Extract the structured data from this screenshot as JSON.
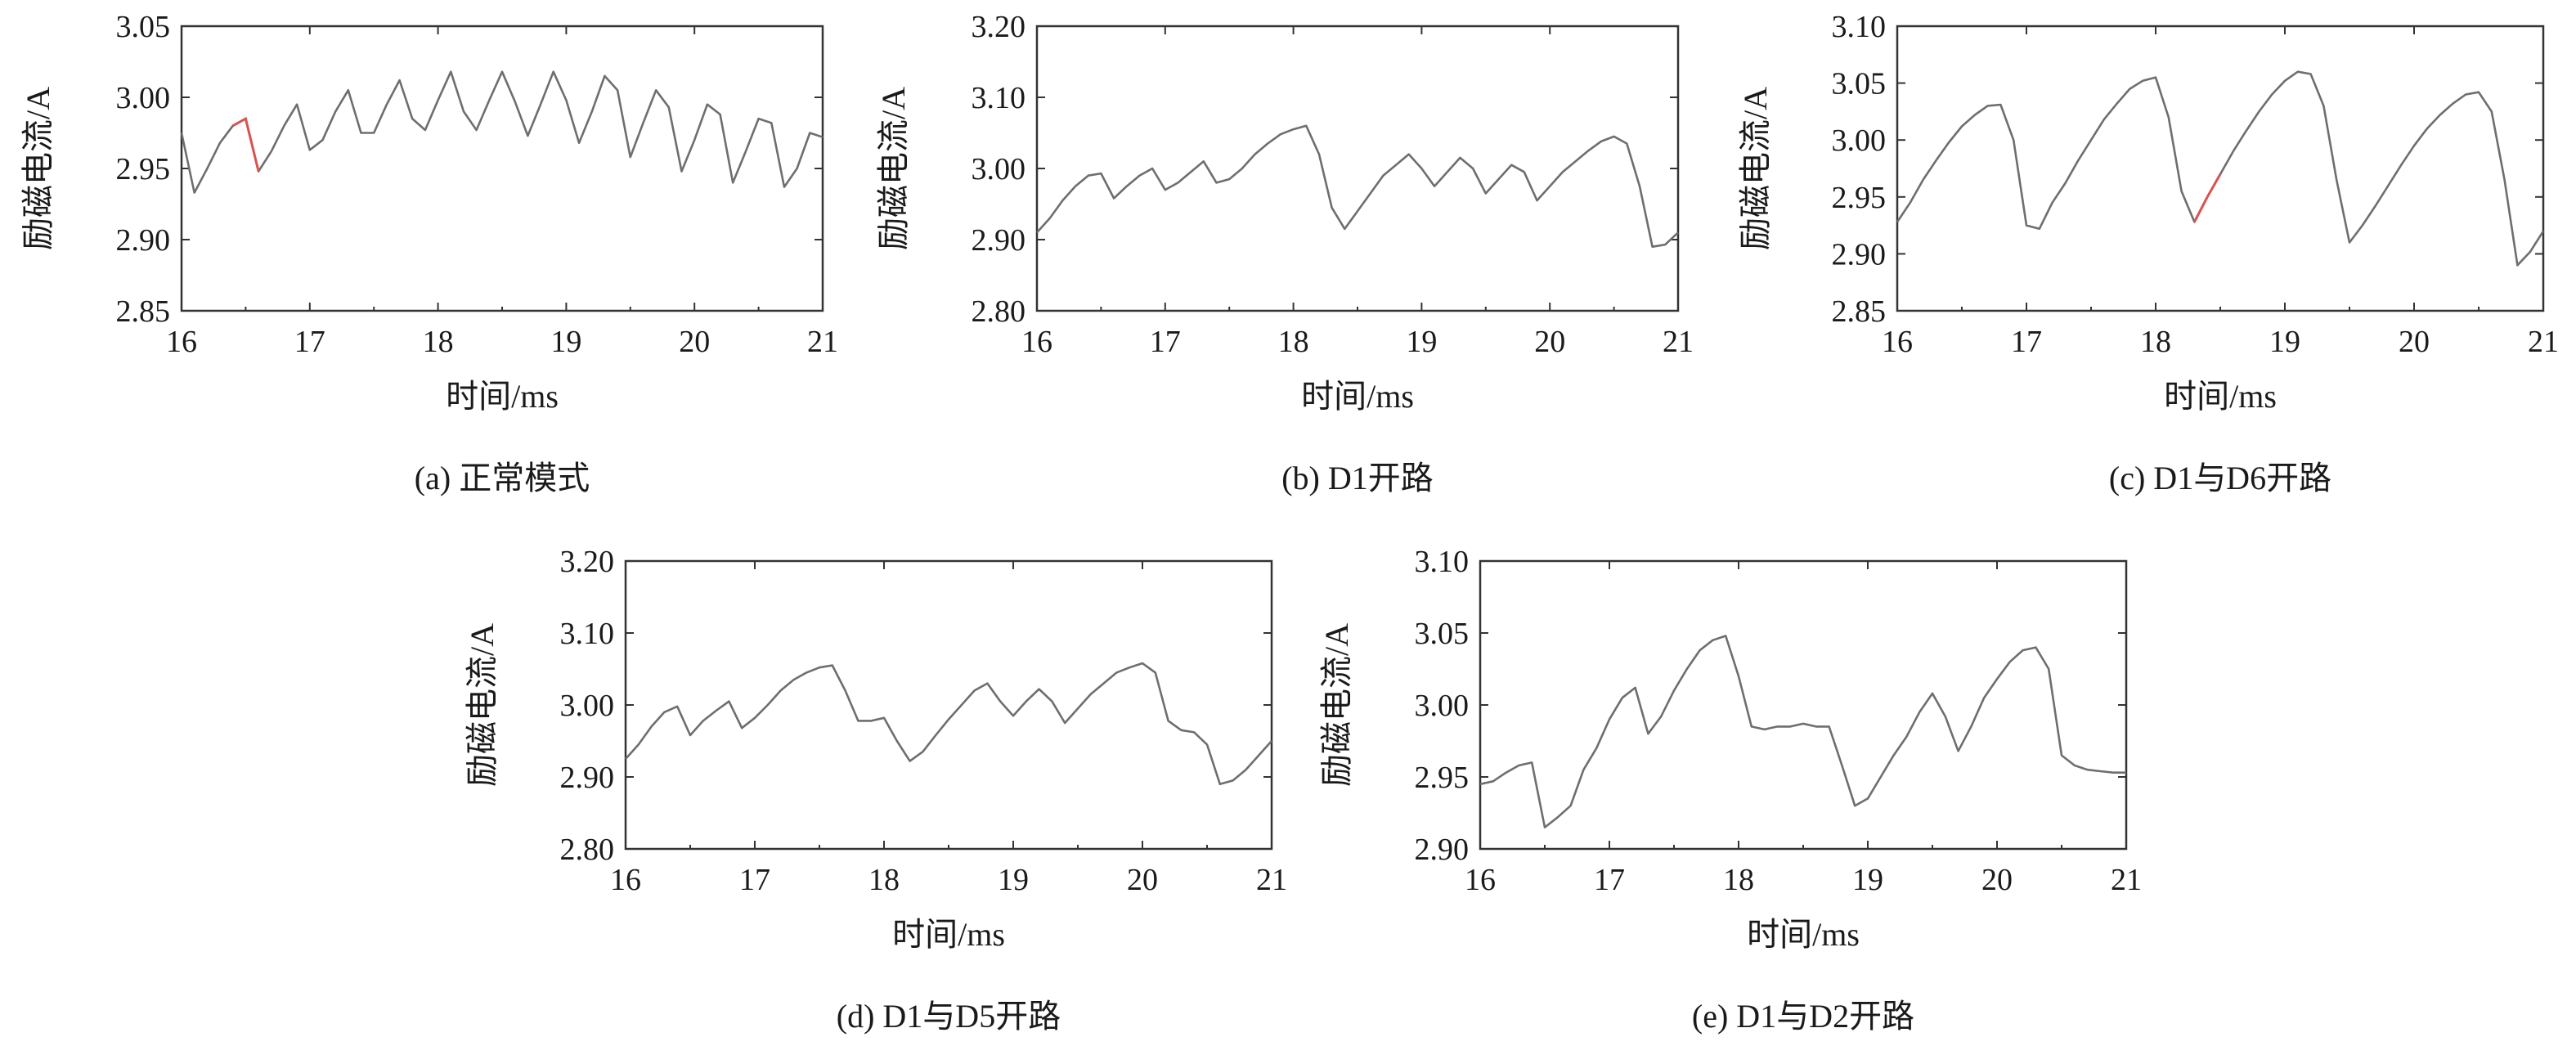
{
  "chart_data": [
    {
      "type": "line",
      "caption": "(a) 正常模式",
      "xlabel": "时间/ms",
      "ylabel": "励磁电流/A",
      "xlim": [
        16,
        21
      ],
      "ylim": [
        2.85,
        3.05
      ],
      "xticks": [
        16,
        17,
        18,
        19,
        20,
        21
      ],
      "yticks": [
        2.85,
        2.9,
        2.95,
        3.0,
        3.05
      ],
      "ytick_labels": [
        "2.85",
        "2.90",
        "2.95",
        "3.00",
        "3.05"
      ],
      "grid": false,
      "accent_color": "#d9534f",
      "accent_segment": [
        4,
        6
      ],
      "series": [
        {
          "x": [
            16.0,
            16.1,
            16.2,
            16.3,
            16.4,
            16.5,
            16.6,
            16.7,
            16.8,
            16.9,
            17.0,
            17.1,
            17.2,
            17.3,
            17.4,
            17.5,
            17.6,
            17.7,
            17.8,
            17.9,
            18.0,
            18.1,
            18.2,
            18.3,
            18.4,
            18.5,
            18.6,
            18.7,
            18.8,
            18.9,
            19.0,
            19.1,
            19.2,
            19.3,
            19.4,
            19.5,
            19.6,
            19.7,
            19.8,
            19.9,
            20.0,
            20.1,
            20.2,
            20.3,
            20.4,
            20.5,
            20.6,
            20.7,
            20.8,
            20.9,
            21.0
          ],
          "values": [
            2.975,
            2.933,
            2.95,
            2.968,
            2.98,
            2.985,
            2.948,
            2.962,
            2.98,
            2.995,
            2.963,
            2.97,
            2.99,
            3.005,
            2.975,
            2.975,
            2.995,
            3.012,
            2.985,
            2.977,
            2.998,
            3.018,
            2.99,
            2.977,
            2.998,
            3.018,
            2.997,
            2.973,
            2.995,
            3.018,
            2.998,
            2.968,
            2.99,
            3.015,
            3.005,
            2.958,
            2.982,
            3.005,
            2.993,
            2.948,
            2.97,
            2.995,
            2.988,
            2.94,
            2.962,
            2.985,
            2.982,
            2.937,
            2.95,
            2.975,
            2.972
          ]
        }
      ]
    },
    {
      "type": "line",
      "caption": "(b) D1开路",
      "xlabel": "时间/ms",
      "ylabel": "励磁电流/A",
      "xlim": [
        16,
        21
      ],
      "ylim": [
        2.8,
        3.2
      ],
      "xticks": [
        16,
        17,
        18,
        19,
        20,
        21
      ],
      "yticks": [
        2.8,
        2.9,
        3.0,
        3.1,
        3.2
      ],
      "ytick_labels": [
        "2.80",
        "2.90",
        "3.00",
        "3.10",
        "3.20"
      ],
      "grid": false,
      "series": [
        {
          "x": [
            16.0,
            16.1,
            16.2,
            16.3,
            16.4,
            16.5,
            16.6,
            16.7,
            16.8,
            16.9,
            17.0,
            17.1,
            17.2,
            17.3,
            17.4,
            17.5,
            17.6,
            17.7,
            17.8,
            17.9,
            18.0,
            18.1,
            18.2,
            18.3,
            18.4,
            18.5,
            18.6,
            18.7,
            18.8,
            18.9,
            19.0,
            19.1,
            19.2,
            19.3,
            19.4,
            19.5,
            19.6,
            19.7,
            19.8,
            19.9,
            20.0,
            20.1,
            20.2,
            20.3,
            20.4,
            20.5,
            20.6,
            20.7,
            20.8,
            20.9,
            21.0
          ],
          "values": [
            2.91,
            2.93,
            2.955,
            2.975,
            2.99,
            2.993,
            2.958,
            2.975,
            2.99,
            3.0,
            2.97,
            2.98,
            2.995,
            3.01,
            2.98,
            2.985,
            3.0,
            3.02,
            3.035,
            3.048,
            3.055,
            3.06,
            3.02,
            2.945,
            2.915,
            2.94,
            2.965,
            2.99,
            3.005,
            3.02,
            3.0,
            2.975,
            2.995,
            3.015,
            3.0,
            2.965,
            2.985,
            3.005,
            2.995,
            2.955,
            2.975,
            2.995,
            3.01,
            3.025,
            3.038,
            3.045,
            3.035,
            2.975,
            2.89,
            2.893,
            2.91
          ]
        }
      ]
    },
    {
      "type": "line",
      "caption": "(c) D1与D6开路",
      "xlabel": "时间/ms",
      "ylabel": "励磁电流/A",
      "xlim": [
        16,
        21
      ],
      "ylim": [
        2.85,
        3.1
      ],
      "xticks": [
        16,
        17,
        18,
        19,
        20,
        21
      ],
      "yticks": [
        2.85,
        2.9,
        2.95,
        3.0,
        3.05,
        3.1
      ],
      "ytick_labels": [
        "2.85",
        "2.90",
        "2.95",
        "3.00",
        "3.05",
        "3.10"
      ],
      "grid": false,
      "accent_color": "#d9534f",
      "accent_segment": [
        23,
        25
      ],
      "series": [
        {
          "x": [
            16.0,
            16.1,
            16.2,
            16.3,
            16.4,
            16.5,
            16.6,
            16.7,
            16.8,
            16.9,
            17.0,
            17.1,
            17.2,
            17.3,
            17.4,
            17.5,
            17.6,
            17.7,
            17.8,
            17.9,
            18.0,
            18.1,
            18.2,
            18.3,
            18.4,
            18.5,
            18.6,
            18.7,
            18.8,
            18.9,
            19.0,
            19.1,
            19.2,
            19.3,
            19.4,
            19.5,
            19.6,
            19.7,
            19.8,
            19.9,
            20.0,
            20.1,
            20.2,
            20.3,
            20.4,
            20.5,
            20.6,
            20.7,
            20.8,
            20.9,
            21.0
          ],
          "values": [
            2.928,
            2.945,
            2.965,
            2.982,
            2.998,
            3.012,
            3.022,
            3.03,
            3.031,
            3.0,
            2.925,
            2.922,
            2.945,
            2.962,
            2.982,
            3.0,
            3.018,
            3.032,
            3.045,
            3.052,
            3.055,
            3.02,
            2.955,
            2.928,
            2.95,
            2.97,
            2.99,
            3.008,
            3.025,
            3.04,
            3.052,
            3.06,
            3.058,
            3.03,
            2.965,
            2.91,
            2.925,
            2.942,
            2.96,
            2.978,
            2.995,
            3.01,
            3.022,
            3.032,
            3.04,
            3.042,
            3.025,
            2.965,
            2.89,
            2.902,
            2.92
          ]
        }
      ]
    },
    {
      "type": "line",
      "caption": "(d) D1与D5开路",
      "xlabel": "时间/ms",
      "ylabel": "励磁电流/A",
      "xlim": [
        16,
        21
      ],
      "ylim": [
        2.8,
        3.2
      ],
      "xticks": [
        16,
        17,
        18,
        19,
        20,
        21
      ],
      "yticks": [
        2.8,
        2.9,
        3.0,
        3.1,
        3.2
      ],
      "ytick_labels": [
        "2.80",
        "2.90",
        "3.00",
        "3.10",
        "3.20"
      ],
      "grid": false,
      "series": [
        {
          "x": [
            16.0,
            16.1,
            16.2,
            16.3,
            16.4,
            16.5,
            16.6,
            16.7,
            16.8,
            16.9,
            17.0,
            17.1,
            17.2,
            17.3,
            17.4,
            17.5,
            17.6,
            17.7,
            17.8,
            17.9,
            18.0,
            18.1,
            18.2,
            18.3,
            18.4,
            18.5,
            18.6,
            18.7,
            18.8,
            18.9,
            19.0,
            19.1,
            19.2,
            19.3,
            19.4,
            19.5,
            19.6,
            19.7,
            19.8,
            19.9,
            20.0,
            20.1,
            20.2,
            20.3,
            20.4,
            20.5,
            20.6,
            20.7,
            20.8,
            20.9,
            21.0
          ],
          "values": [
            2.925,
            2.945,
            2.97,
            2.99,
            2.998,
            2.958,
            2.978,
            2.992,
            3.005,
            2.968,
            2.982,
            3.0,
            3.02,
            3.035,
            3.045,
            3.052,
            3.055,
            3.02,
            2.978,
            2.978,
            2.982,
            2.95,
            2.922,
            2.935,
            2.958,
            2.98,
            3.0,
            3.02,
            3.03,
            3.005,
            2.985,
            3.005,
            3.022,
            3.005,
            2.975,
            2.995,
            3.015,
            3.03,
            3.045,
            3.052,
            3.058,
            3.045,
            2.978,
            2.965,
            2.962,
            2.945,
            2.89,
            2.895,
            2.91,
            2.93,
            2.95
          ]
        }
      ]
    },
    {
      "type": "line",
      "caption": "(e) D1与D2开路",
      "xlabel": "时间/ms",
      "ylabel": "励磁电流/A",
      "xlim": [
        16,
        21
      ],
      "ylim": [
        2.9,
        3.1
      ],
      "xticks": [
        16,
        17,
        18,
        19,
        20,
        21
      ],
      "yticks": [
        2.9,
        2.95,
        3.0,
        3.05,
        3.1
      ],
      "ytick_labels": [
        "2.90",
        "2.95",
        "3.00",
        "3.05",
        "3.10"
      ],
      "grid": false,
      "series": [
        {
          "x": [
            16.0,
            16.1,
            16.2,
            16.3,
            16.4,
            16.5,
            16.6,
            16.7,
            16.8,
            16.9,
            17.0,
            17.1,
            17.2,
            17.3,
            17.4,
            17.5,
            17.6,
            17.7,
            17.8,
            17.9,
            18.0,
            18.1,
            18.2,
            18.3,
            18.4,
            18.5,
            18.6,
            18.7,
            18.8,
            18.9,
            19.0,
            19.1,
            19.2,
            19.3,
            19.4,
            19.5,
            19.6,
            19.7,
            19.8,
            19.9,
            20.0,
            20.1,
            20.2,
            20.3,
            20.4,
            20.5,
            20.6,
            20.7,
            20.8,
            20.9,
            21.0
          ],
          "values": [
            2.945,
            2.947,
            2.953,
            2.958,
            2.96,
            2.915,
            2.922,
            2.93,
            2.955,
            2.97,
            2.99,
            3.005,
            3.012,
            2.98,
            2.992,
            3.01,
            3.025,
            3.038,
            3.045,
            3.048,
            3.02,
            2.985,
            2.983,
            2.985,
            2.985,
            2.987,
            2.985,
            2.985,
            2.958,
            2.93,
            2.935,
            2.95,
            2.965,
            2.978,
            2.995,
            3.008,
            2.992,
            2.968,
            2.985,
            3.005,
            3.018,
            3.03,
            3.038,
            3.04,
            3.025,
            2.965,
            2.958,
            2.955,
            2.954,
            2.953,
            2.953
          ]
        }
      ]
    }
  ]
}
